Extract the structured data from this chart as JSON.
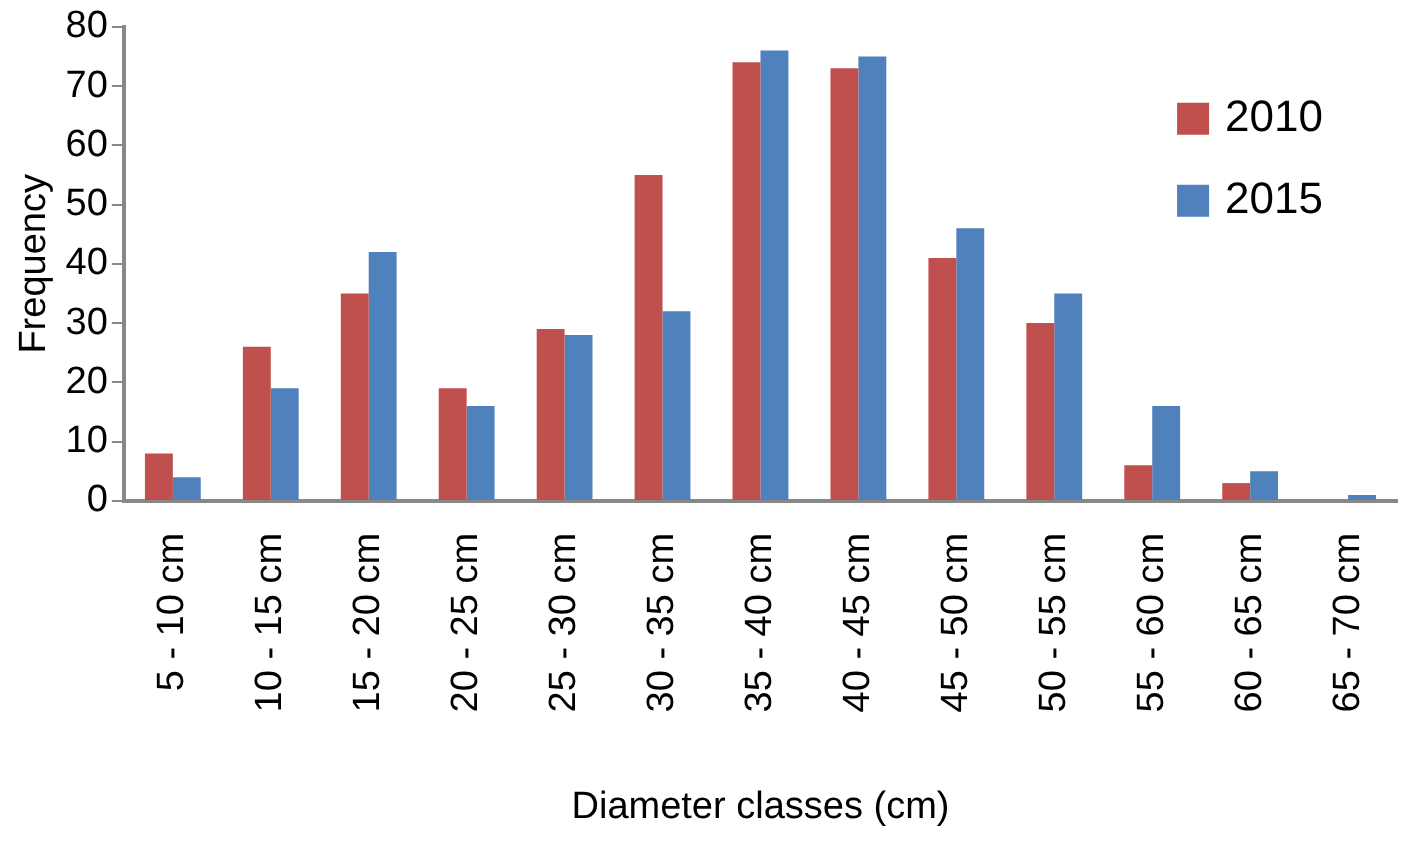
{
  "chart_data": {
    "type": "bar",
    "xlabel": "Diameter classes (cm)",
    "ylabel": "Frequency",
    "categories": [
      "5 - 10 cm",
      "10 - 15 cm",
      "15 - 20 cm",
      "20 - 25 cm",
      "25 - 30 cm",
      "30 - 35 cm",
      "35 - 40 cm",
      "40 - 45 cm",
      "45 - 50 cm",
      "50 - 55 cm",
      "55 - 60 cm",
      "60 - 65 cm",
      "65 - 70 cm"
    ],
    "series": [
      {
        "name": "2010",
        "color": "#c0504d",
        "values": [
          8,
          26,
          35,
          19,
          29,
          55,
          74,
          73,
          41,
          30,
          6,
          3,
          0
        ]
      },
      {
        "name": "2015",
        "color": "#4f81bd",
        "values": [
          4,
          19,
          42,
          16,
          28,
          32,
          76,
          75,
          46,
          35,
          16,
          5,
          1
        ]
      }
    ],
    "ylim": [
      0,
      80
    ],
    "yticks": [
      0,
      10,
      20,
      30,
      40,
      50,
      60,
      70,
      80
    ],
    "grid": false,
    "legend": "top right"
  }
}
